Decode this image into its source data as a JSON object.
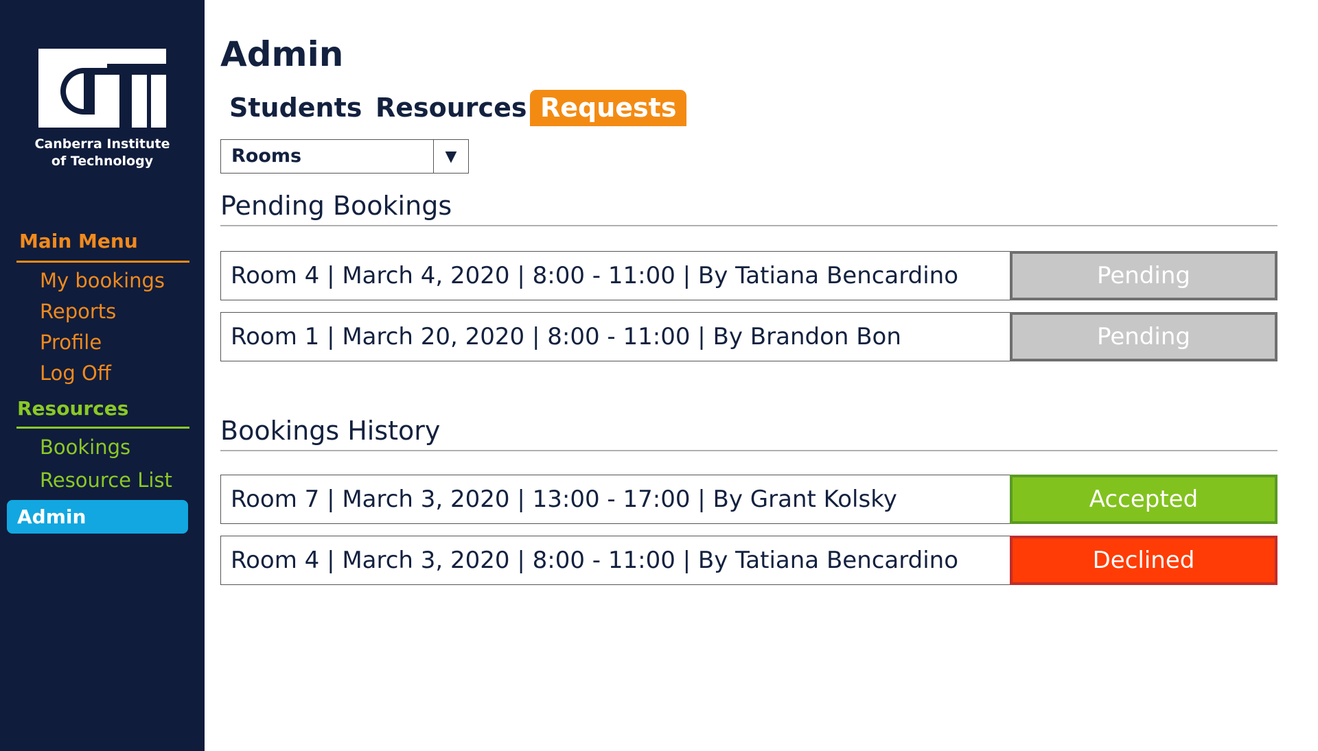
{
  "brand": {
    "logo_text": "CIT",
    "caption_line1": "Canberra Institute",
    "caption_line2": "of Technology"
  },
  "sidebar": {
    "main_menu": {
      "heading": "Main Menu",
      "items": [
        "My bookings",
        "Reports",
        "Profile",
        "Log Off"
      ]
    },
    "resources": {
      "heading": "Resources",
      "items": [
        "Bookings",
        "Resource List"
      ]
    },
    "admin": "Admin"
  },
  "page": {
    "title": "Admin",
    "tabs": [
      "Students",
      "Resources",
      "Requests"
    ],
    "active_tab": "Requests",
    "filter": {
      "selected": "Rooms",
      "arrow_icon": "triangle-down"
    }
  },
  "pending": {
    "title": "Pending Bookings",
    "rows": [
      {
        "text": "Room 4 | March 4, 2020 | 8:00 - 11:00 | By Tatiana Bencardino",
        "status": "Pending"
      },
      {
        "text": "Room 1 | March 20, 2020 | 8:00 - 11:00 | By Brandon Bon",
        "status": "Pending"
      }
    ]
  },
  "history": {
    "title": "Bookings History",
    "rows": [
      {
        "text": "Room 7 | March 3, 2020 | 13:00 - 17:00 | By Grant Kolsky",
        "status": "Accepted"
      },
      {
        "text": "Room 4 | March 3, 2020 | 8:00 - 11:00 | By Tatiana Bencardino",
        "status": "Declined"
      }
    ]
  },
  "colors": {
    "sidebar_bg": "#101c3b",
    "accent_orange": "#f38b13",
    "accent_green": "#8ac926",
    "admin_blue": "#12a7e0",
    "pending": "#c7c7c7",
    "accepted": "#82c21e",
    "declined": "#ff3c05"
  }
}
